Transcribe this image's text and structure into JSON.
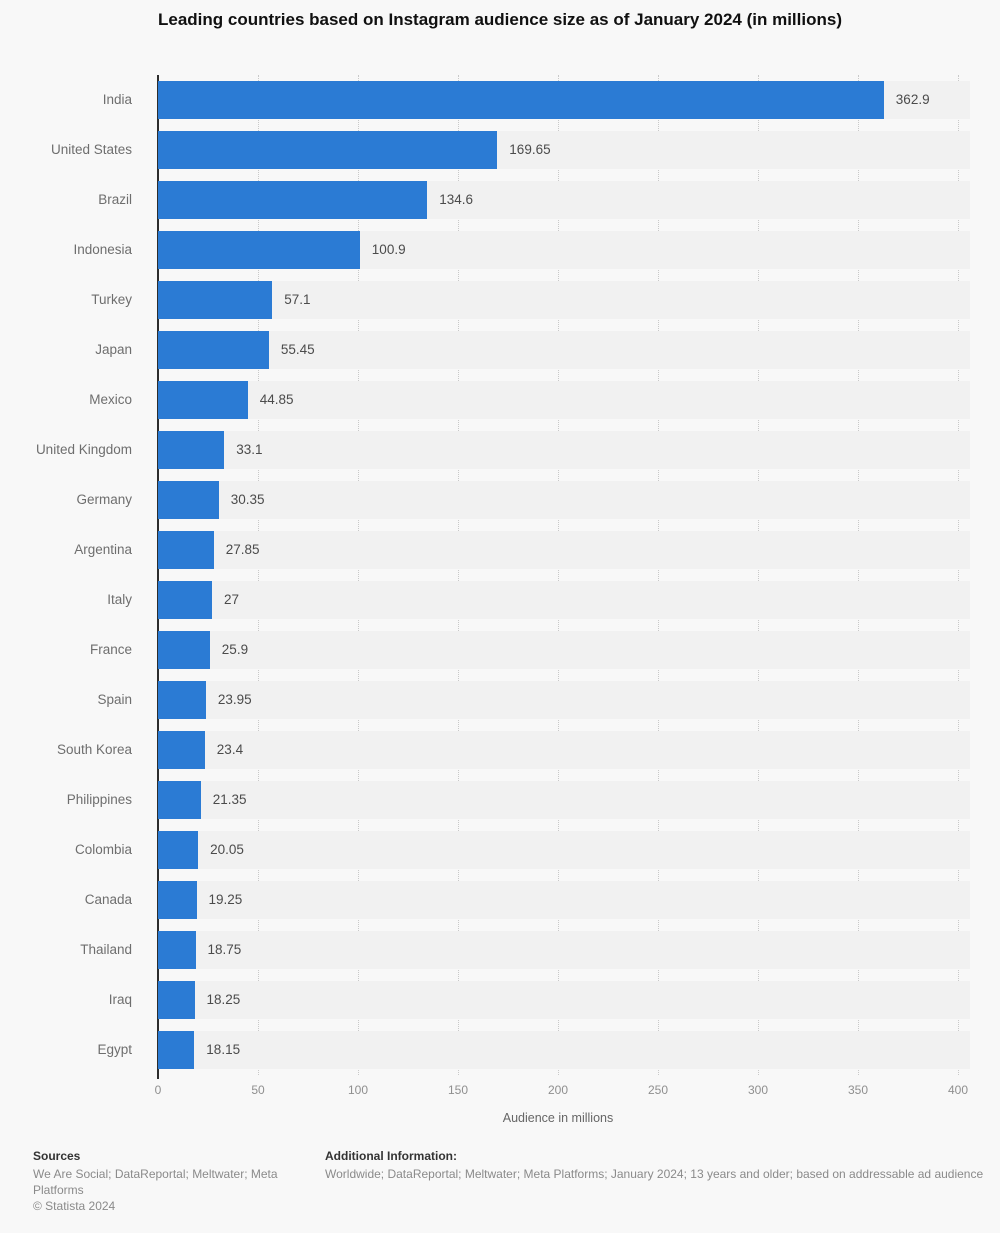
{
  "chart_data": {
    "type": "bar",
    "orientation": "horizontal",
    "title": "Leading countries based on Instagram audience size as of January 2024 (in millions)",
    "categories": [
      "India",
      "United States",
      "Brazil",
      "Indonesia",
      "Turkey",
      "Japan",
      "Mexico",
      "United Kingdom",
      "Germany",
      "Argentina",
      "Italy",
      "France",
      "Spain",
      "South Korea",
      "Philippines",
      "Colombia",
      "Canada",
      "Thailand",
      "Iraq",
      "Egypt"
    ],
    "values": [
      362.9,
      169.65,
      134.6,
      100.9,
      57.1,
      55.45,
      44.85,
      33.1,
      30.35,
      27.85,
      27,
      25.9,
      23.95,
      23.4,
      21.35,
      20.05,
      19.25,
      18.75,
      18.25,
      18.15
    ],
    "xlabel": "Audience in millions",
    "ylabel": "",
    "xlim": [
      0,
      400
    ],
    "xticks": [
      0,
      50,
      100,
      150,
      200,
      250,
      300,
      350,
      400
    ],
    "grid": "vertical-dotted",
    "legend": "none",
    "bar_color": "#2b7bd4"
  },
  "footer": {
    "sources_label": "Sources",
    "sources_text": "We Are Social; DataReportal; Meltwater; Meta Platforms",
    "copyright": "© Statista 2024",
    "additional_label": "Additional Information:",
    "additional_text": "Worldwide; DataReportal; Meltwater; Meta Platforms; January 2024; 13 years and older; based on addressable ad audience"
  },
  "colors": {
    "bar": "#2b7bd4",
    "background": "#f8f8f8",
    "row_band": "#f1f1f1",
    "axis_line": "#2d2d2d",
    "gridline": "#c9c9c9"
  }
}
